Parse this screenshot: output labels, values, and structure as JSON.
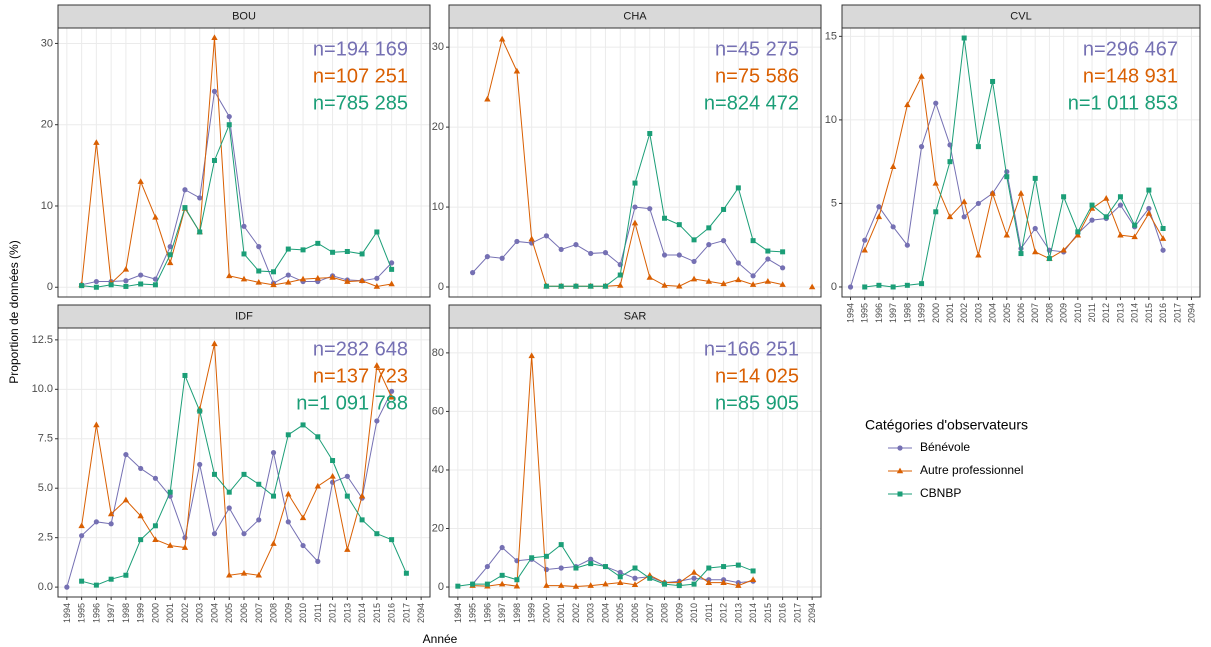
{
  "y_label": "Proportion de données (%)",
  "x_label": "Année",
  "legend": {
    "title": "Catégories d'observateurs",
    "series": [
      {
        "name": "Bénévole",
        "color": "#7570b3",
        "marker": "circle"
      },
      {
        "name": "Autre professionnel",
        "color": "#d95f02",
        "marker": "triangle"
      },
      {
        "name": "CBNBP",
        "color": "#1b9e77",
        "marker": "square"
      }
    ]
  },
  "chart_data": [
    {
      "type": "line",
      "title": "BOU",
      "ylim": [
        -1.2,
        31.9
      ],
      "yticks": [
        0,
        10,
        20,
        30
      ],
      "grid": true,
      "annotations": [
        "n=194 169",
        "n=107 251",
        "n=785 285"
      ],
      "series": [
        {
          "color": "#7570b3",
          "values": [
            null,
            0.3,
            0.7,
            0.7,
            0.8,
            1.5,
            1.0,
            5.0,
            12.0,
            11.0,
            24.1,
            21.0,
            7.5,
            5.0,
            0.5,
            1.5,
            0.7,
            0.7,
            1.4,
            0.9,
            0.8,
            1.1,
            3.0,
            null,
            null
          ]
        },
        {
          "color": "#d95f02",
          "values": [
            null,
            0.3,
            17.8,
            0.5,
            2.2,
            13.0,
            8.6,
            3.0,
            9.7,
            6.8,
            30.7,
            1.4,
            1.0,
            0.6,
            0.3,
            0.6,
            1.0,
            1.1,
            1.2,
            0.7,
            0.8,
            0.1,
            0.4,
            null,
            null
          ]
        },
        {
          "color": "#1b9e77",
          "values": [
            null,
            0.2,
            0.0,
            0.3,
            0.1,
            0.4,
            0.3,
            4.0,
            9.8,
            6.8,
            15.6,
            20.0,
            4.1,
            2.0,
            1.9,
            4.7,
            4.6,
            5.4,
            4.3,
            4.4,
            4.1,
            6.8,
            2.2,
            null,
            null
          ]
        }
      ]
    },
    {
      "type": "line",
      "title": "CHA",
      "ylim": [
        -1.25,
        32.4
      ],
      "yticks": [
        0,
        10,
        20,
        30
      ],
      "grid": true,
      "annotations": [
        "n=45 275",
        "n=75 586",
        "n=824 472"
      ],
      "series": [
        {
          "color": "#7570b3",
          "values": [
            null,
            1.8,
            3.8,
            3.6,
            5.7,
            5.5,
            6.4,
            4.7,
            5.3,
            4.2,
            4.3,
            2.8,
            10.0,
            9.8,
            4.0,
            4.0,
            3.2,
            5.3,
            5.8,
            3.0,
            1.4,
            3.5,
            2.4,
            null,
            null
          ]
        },
        {
          "color": "#d95f02",
          "values": [
            null,
            null,
            23.5,
            31.0,
            27.0,
            6.0,
            0.1,
            0.1,
            0.1,
            0.1,
            0.1,
            0.2,
            8.0,
            1.2,
            0.2,
            0.1,
            1.0,
            0.7,
            0.4,
            0.9,
            0.3,
            0.7,
            0.3,
            null,
            0.0
          ]
        },
        {
          "color": "#1b9e77",
          "values": [
            null,
            null,
            null,
            null,
            null,
            null,
            0.1,
            0.1,
            0.1,
            0.1,
            0.1,
            1.5,
            13.0,
            19.2,
            8.6,
            7.8,
            5.9,
            7.4,
            9.7,
            12.4,
            5.8,
            4.5,
            4.4,
            null,
            null
          ]
        }
      ]
    },
    {
      "type": "line",
      "title": "CVL",
      "ylim": [
        -0.6,
        15.5
      ],
      "yticks": [
        0,
        5,
        10,
        15
      ],
      "grid": true,
      "categories": [
        "1994",
        "1995",
        "1996",
        "1997",
        "1998",
        "1999",
        "2000",
        "2001",
        "2002",
        "2003",
        "2004",
        "2005",
        "2006",
        "2007",
        "2008",
        "2009",
        "2010",
        "2011",
        "2012",
        "2013",
        "2014",
        "2015",
        "2016",
        "2017",
        "2094"
      ],
      "annotations": [
        "n=296 467",
        "n=148 931",
        "n=1 011 853"
      ],
      "series": [
        {
          "color": "#7570b3",
          "values": [
            0.0,
            2.8,
            4.8,
            3.6,
            2.5,
            8.4,
            11.0,
            8.5,
            4.2,
            5.0,
            5.6,
            6.9,
            2.3,
            3.5,
            2.2,
            2.1,
            3.2,
            4.0,
            4.1,
            4.9,
            3.6,
            4.7,
            2.2,
            null,
            null
          ]
        },
        {
          "color": "#d95f02",
          "values": [
            null,
            2.2,
            4.2,
            7.2,
            10.9,
            12.6,
            6.2,
            4.2,
            5.1,
            1.9,
            5.6,
            3.1,
            5.6,
            2.1,
            1.7,
            2.2,
            3.1,
            4.7,
            5.3,
            3.1,
            3.0,
            4.4,
            2.9,
            null,
            null
          ]
        },
        {
          "color": "#1b9e77",
          "values": [
            null,
            0.0,
            0.1,
            0.0,
            0.1,
            0.2,
            4.5,
            7.5,
            14.9,
            8.4,
            12.3,
            6.6,
            2.0,
            6.5,
            1.7,
            5.4,
            3.3,
            4.9,
            4.2,
            5.4,
            3.7,
            5.8,
            3.5,
            null,
            null
          ]
        }
      ]
    },
    {
      "type": "line",
      "title": "IDF",
      "ylim": [
        -0.5,
        13.1
      ],
      "yticks": [
        {
          "value": 0,
          "label": "0.0"
        },
        2.5,
        {
          "value": 5,
          "label": "5.0"
        },
        7.5,
        {
          "value": 10,
          "label": "10.0"
        },
        12.5
      ],
      "grid": true,
      "categories": [
        "1994",
        "1995",
        "1996",
        "1997",
        "1998",
        "1999",
        "2000",
        "2001",
        "2002",
        "2003",
        "2004",
        "2005",
        "2006",
        "2007",
        "2008",
        "2009",
        "2010",
        "2011",
        "2012",
        "2013",
        "2014",
        "2015",
        "2016",
        "2017",
        "2094"
      ],
      "annotations": [
        "n=282 648",
        "n=137 723",
        "n=1 091 788"
      ],
      "series": [
        {
          "color": "#7570b3",
          "values": [
            0.0,
            2.6,
            3.3,
            3.2,
            6.7,
            6.0,
            5.5,
            4.6,
            2.5,
            6.2,
            2.7,
            4.0,
            2.7,
            3.4,
            6.8,
            3.3,
            2.1,
            1.3,
            5.3,
            5.6,
            4.5,
            8.4,
            9.9,
            null,
            null
          ]
        },
        {
          "color": "#d95f02",
          "values": [
            null,
            3.1,
            8.2,
            3.7,
            4.4,
            3.6,
            2.4,
            2.1,
            2.0,
            9.0,
            12.3,
            0.6,
            0.7,
            0.6,
            2.2,
            4.7,
            3.5,
            5.1,
            5.6,
            1.9,
            4.6,
            11.2,
            9.6,
            null,
            null
          ]
        },
        {
          "color": "#1b9e77",
          "values": [
            null,
            0.3,
            0.1,
            0.4,
            0.6,
            2.4,
            3.1,
            4.8,
            10.7,
            8.9,
            5.7,
            4.8,
            5.7,
            5.2,
            4.6,
            7.7,
            8.2,
            7.6,
            6.4,
            4.6,
            3.4,
            2.7,
            2.4,
            0.7,
            null
          ]
        }
      ]
    },
    {
      "type": "line",
      "title": "SAR",
      "ylim": [
        -3.4,
        88.5
      ],
      "yticks": [
        0,
        20,
        40,
        60,
        80
      ],
      "grid": true,
      "categories": [
        "1994",
        "1995",
        "1996",
        "1997",
        "1998",
        "1999",
        "2000",
        "2001",
        "2002",
        "2003",
        "2004",
        "2005",
        "2006",
        "2007",
        "2008",
        "2009",
        "2010",
        "2011",
        "2012",
        "2013",
        "2014",
        "2015",
        "2016",
        "2017",
        "2094"
      ],
      "annotations": [
        "n=166 251",
        "n=14 025",
        "n=85 905"
      ],
      "series": [
        {
          "color": "#7570b3",
          "values": [
            null,
            1.0,
            7.0,
            13.5,
            9.0,
            9.5,
            6.0,
            6.5,
            7.0,
            9.5,
            7.0,
            5.0,
            3.0,
            3.5,
            1.5,
            2.0,
            3.0,
            2.5,
            2.5,
            1.5,
            2.0,
            null,
            null,
            null,
            null
          ]
        },
        {
          "color": "#d95f02",
          "values": [
            null,
            0.5,
            0.3,
            1.0,
            0.3,
            79.0,
            0.5,
            0.5,
            0.2,
            0.5,
            1.0,
            1.5,
            0.8,
            4.0,
            1.5,
            1.5,
            5.0,
            1.5,
            1.5,
            0.5,
            2.5,
            null,
            null,
            null,
            null
          ]
        },
        {
          "color": "#1b9e77",
          "values": [
            0.3,
            1.0,
            1.0,
            4.0,
            2.5,
            10.0,
            10.5,
            14.5,
            6.5,
            8.0,
            7.0,
            3.5,
            6.5,
            3.0,
            1.0,
            0.5,
            1.0,
            6.5,
            7.0,
            7.5,
            5.5,
            null,
            null,
            null,
            null
          ]
        }
      ]
    }
  ]
}
